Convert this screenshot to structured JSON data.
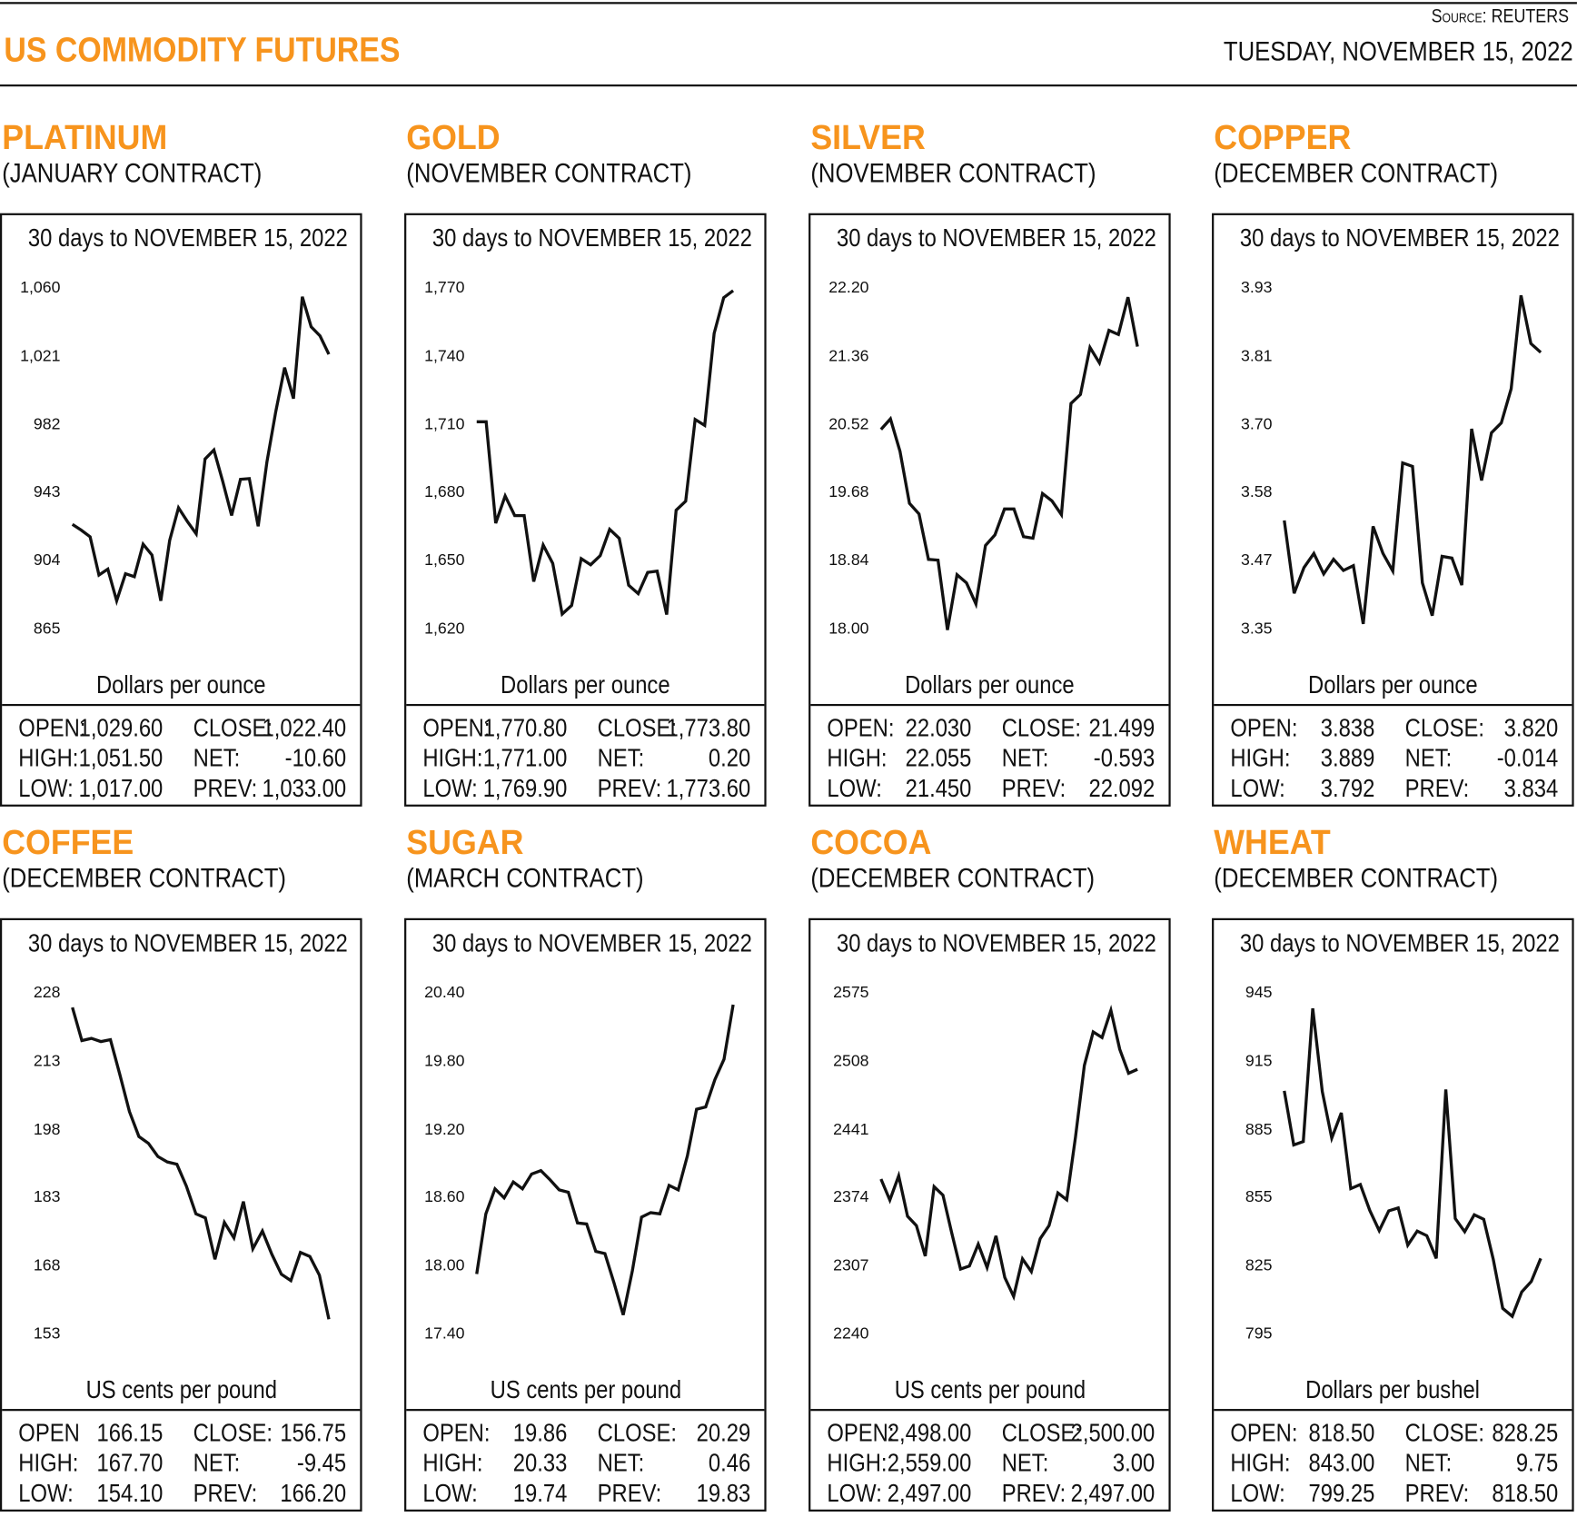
{
  "header": {
    "title": "US COMMODITY FUTURES",
    "source_label": "Source:",
    "source_name": "REUTERS",
    "date": "TUESDAY, NOVEMBER 15, 2022",
    "accent_color": "#F7941D"
  },
  "panels": [
    {
      "name": "PLATINUM",
      "contract": "(JANUARY CONTRACT)",
      "stats": [
        [
          "OPEN:",
          "1,029.60",
          "CLOSE:",
          "1,022.40"
        ],
        [
          "HIGH:",
          "1,051.50",
          "NET:",
          "-10.60"
        ],
        [
          "LOW:",
          "1,017.00",
          "PREV:",
          "1,033.00"
        ]
      ]
    },
    {
      "name": "GOLD",
      "contract": "(NOVEMBER CONTRACT)",
      "stats": [
        [
          "OPEN:",
          "1,770.80",
          "CLOSE:",
          "1,773.80"
        ],
        [
          "HIGH:",
          "1,771.00",
          "NET:",
          "0.20"
        ],
        [
          "LOW:",
          "1,769.90",
          "PREV:",
          "1,773.60"
        ]
      ]
    },
    {
      "name": "SILVER",
      "contract": "(NOVEMBER CONTRACT)",
      "stats": [
        [
          "OPEN:",
          "22.030",
          "CLOSE:",
          "21.499"
        ],
        [
          "HIGH:",
          "22.055",
          "NET:",
          "-0.593"
        ],
        [
          "LOW:",
          "21.450",
          "PREV:",
          "22.092"
        ]
      ]
    },
    {
      "name": "COPPER",
      "contract": "(DECEMBER CONTRACT)",
      "stats": [
        [
          "OPEN:",
          "3.838",
          "CLOSE:",
          "3.820"
        ],
        [
          "HIGH:",
          "3.889",
          "NET:",
          "-0.014"
        ],
        [
          "LOW:",
          "3.792",
          "PREV:",
          "3.834"
        ]
      ]
    },
    {
      "name": "COFFEE",
      "contract": "(DECEMBER CONTRACT)",
      "stats": [
        [
          "OPEN",
          "166.15",
          "CLOSE:",
          "156.75"
        ],
        [
          "HIGH:",
          "167.70",
          "NET:",
          "-9.45"
        ],
        [
          "LOW:",
          "154.10",
          "PREV:",
          "166.20"
        ]
      ]
    },
    {
      "name": "SUGAR",
      "contract": "(MARCH CONTRACT)",
      "stats": [
        [
          "OPEN:",
          "19.86",
          "CLOSE:",
          "20.29"
        ],
        [
          "HIGH:",
          "20.33",
          "NET:",
          "0.46"
        ],
        [
          "LOW:",
          "19.74",
          "PREV:",
          "19.83"
        ]
      ]
    },
    {
      "name": "COCOA",
      "contract": "(DECEMBER CONTRACT)",
      "stats": [
        [
          "OPEN:",
          "2,498.00",
          "CLOSE:",
          "2,500.00"
        ],
        [
          "HIGH:",
          "2,559.00",
          "NET:",
          "3.00"
        ],
        [
          "LOW:",
          "2,497.00",
          "PREV:",
          "2,497.00"
        ]
      ]
    },
    {
      "name": "WHEAT",
      "contract": "(DECEMBER CONTRACT)",
      "stats": [
        [
          "OPEN:",
          "818.50",
          "CLOSE:",
          "828.25"
        ],
        [
          "HIGH:",
          "843.00",
          "NET:",
          "9.75"
        ],
        [
          "LOW:",
          "799.25",
          "PREV:",
          "818.50"
        ]
      ]
    }
  ],
  "chart_data": [
    {
      "type": "line",
      "title": "30 days to NOVEMBER 15, 2022",
      "ylabel": "Dollars per ounce",
      "ylim": [
        865,
        1060
      ],
      "yticks": [
        "1,060",
        "1,021",
        "982",
        "943",
        "904",
        "865"
      ],
      "grid": false,
      "values": [
        926.3,
        923,
        919.2,
        897.3,
        900.7,
        882.6,
        898.1,
        896.4,
        915,
        908.8,
        882.6,
        917.1,
        935.8,
        928,
        920.9,
        963.7,
        968.9,
        950.8,
        931.4,
        952.1,
        952.5,
        925.2,
        962,
        990.8,
        1016,
        998.2,
        1056.5,
        1039.3,
        1034.1,
        1023.6
      ]
    },
    {
      "type": "line",
      "title": "30 days to NOVEMBER 15, 2022",
      "ylabel": "Dollars per ounce",
      "ylim": [
        1620,
        1770
      ],
      "yticks": [
        "1,770",
        "1,740",
        "1,710",
        "1,680",
        "1,650",
        "1,620"
      ],
      "grid": false,
      "values": [
        1712.3,
        1712.3,
        1667.7,
        1679.7,
        1671,
        1671,
        1642,
        1658.1,
        1650,
        1627.7,
        1631.5,
        1652.1,
        1649.4,
        1653.4,
        1665,
        1661,
        1640.4,
        1636.7,
        1646,
        1646.6,
        1627.5,
        1673.4,
        1677.4,
        1713.3,
        1710.7,
        1751.2,
        1766.9,
        1770
      ]
    },
    {
      "type": "line",
      "title": "30 days to NOVEMBER 15, 2022",
      "ylabel": "Dollars per ounce",
      "ylim": [
        18.0,
        22.2
      ],
      "yticks": [
        "22.20",
        "21.36",
        "20.52",
        "19.68",
        "18.84",
        "18.00"
      ],
      "grid": false,
      "values": [
        20.49,
        20.62,
        20.22,
        19.58,
        19.45,
        18.89,
        18.88,
        18.02,
        18.7,
        18.6,
        18.34,
        19.06,
        19.19,
        19.51,
        19.51,
        19.17,
        19.15,
        19.7,
        19.61,
        19.44,
        20.81,
        20.92,
        21.5,
        21.31,
        21.71,
        21.66,
        22.12,
        21.51
      ]
    },
    {
      "type": "line",
      "title": "30 days to NOVEMBER 15, 2022",
      "ylabel": "Dollars per ounce",
      "ylim": [
        3.35,
        3.93
      ],
      "yticks": [
        "3.93",
        "3.81",
        "3.70",
        "3.58",
        "3.47",
        "3.35"
      ],
      "grid": false,
      "values": [
        3.539,
        3.415,
        3.459,
        3.483,
        3.448,
        3.473,
        3.454,
        3.462,
        3.363,
        3.529,
        3.483,
        3.453,
        3.637,
        3.631,
        3.433,
        3.377,
        3.478,
        3.475,
        3.429,
        3.695,
        3.607,
        3.688,
        3.705,
        3.763,
        3.922,
        3.84,
        3.825
      ]
    },
    {
      "type": "line",
      "title": "30 days to NOVEMBER 15, 2022",
      "ylabel": "US cents per pound",
      "ylim": [
        153,
        228
      ],
      "yticks": [
        "228",
        "213",
        "198",
        "183",
        "168",
        "153"
      ],
      "grid": false,
      "values": [
        225.4,
        218.1,
        218.6,
        217.9,
        218.3,
        210.6,
        202.5,
        197,
        195.5,
        192.6,
        191.4,
        190.9,
        186.1,
        180,
        179.1,
        170,
        178.1,
        174.7,
        182.7,
        172.3,
        176.2,
        171.1,
        166.7,
        165.3,
        171.5,
        170.6,
        166.5,
        156.8
      ]
    },
    {
      "type": "line",
      "title": "30 days to NOVEMBER 15, 2022",
      "ylabel": "US cents per pound",
      "ylim": [
        17.4,
        20.4
      ],
      "yticks": [
        "20.40",
        "19.80",
        "19.20",
        "18.60",
        "18.00",
        "17.40"
      ],
      "grid": false,
      "values": [
        17.95,
        18.48,
        18.7,
        18.62,
        18.76,
        18.7,
        18.83,
        18.86,
        18.78,
        18.69,
        18.67,
        18.4,
        18.39,
        18.15,
        18.13,
        17.87,
        17.59,
        17.98,
        18.45,
        18.49,
        18.48,
        18.73,
        18.69,
        18.99,
        19.4,
        19.42,
        19.66,
        19.84,
        20.32
      ]
    },
    {
      "type": "line",
      "title": "30 days to NOVEMBER 15, 2022",
      "ylabel": "US cents per pound",
      "ylim": [
        2240,
        2575
      ],
      "yticks": [
        "2575",
        "2508",
        "2441",
        "2374",
        "2307",
        "2240"
      ],
      "grid": false,
      "values": [
        2394.8,
        2374.1,
        2397.9,
        2358.2,
        2349,
        2319.1,
        2387.2,
        2378.9,
        2342,
        2306.3,
        2309.3,
        2330.7,
        2307.8,
        2338.9,
        2298,
        2279.4,
        2316.3,
        2303.8,
        2336.2,
        2349,
        2381.1,
        2374.4,
        2436.1,
        2506.3,
        2539.3,
        2533.8,
        2560.6,
        2522.2,
        2498.7,
        2502.6
      ]
    },
    {
      "type": "line",
      "title": "30 days to NOVEMBER 15, 2022",
      "ylabel": "Dollars per bushel",
      "ylim": [
        795,
        945
      ],
      "yticks": [
        "945",
        "915",
        "885",
        "855",
        "825",
        "795"
      ],
      "grid": false,
      "values": [
        903.1,
        879.3,
        880.8,
        939.4,
        902.8,
        882.3,
        893.4,
        860.1,
        861.9,
        850.5,
        841.6,
        850.3,
        851.6,
        835.2,
        841.4,
        839.4,
        829.4,
        903.7,
        846.9,
        841.1,
        848.6,
        846.6,
        829,
        807.4,
        803.9,
        814.6,
        819.2,
        829.4
      ]
    }
  ]
}
